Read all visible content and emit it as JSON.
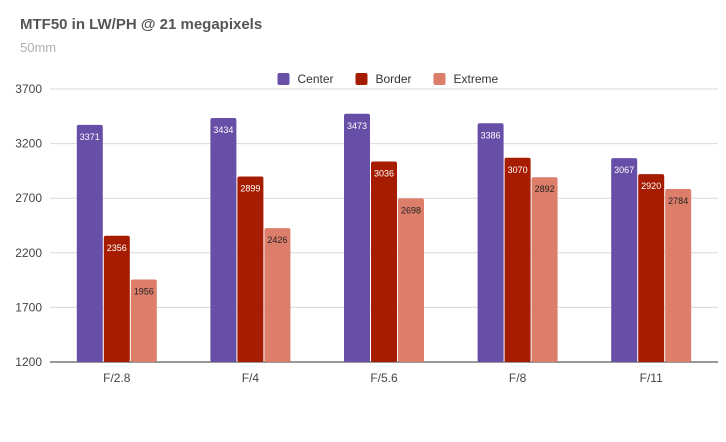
{
  "chart_data": {
    "type": "bar",
    "title": "MTF50 in LW/PH @ 21 megapixels",
    "subtitle": "50mm",
    "xlabel": "",
    "ylabel": "",
    "categories": [
      "F/2.8",
      "F/4",
      "F/5.6",
      "F/8",
      "F/11"
    ],
    "series": [
      {
        "name": "Center",
        "color": "#674ea7",
        "values": [
          3371,
          3434,
          3473,
          3386,
          3067
        ]
      },
      {
        "name": "Border",
        "color": "#a61c00",
        "values": [
          2356,
          2899,
          3036,
          3070,
          2920
        ]
      },
      {
        "name": "Extreme",
        "color": "#dd7e6b",
        "values": [
          1956,
          2426,
          2698,
          2892,
          2784
        ]
      }
    ],
    "ylim": [
      1200,
      3700
    ],
    "yticks": [
      1200,
      1700,
      2200,
      2700,
      3200,
      3700
    ],
    "grid": true,
    "legend_position": "top"
  }
}
